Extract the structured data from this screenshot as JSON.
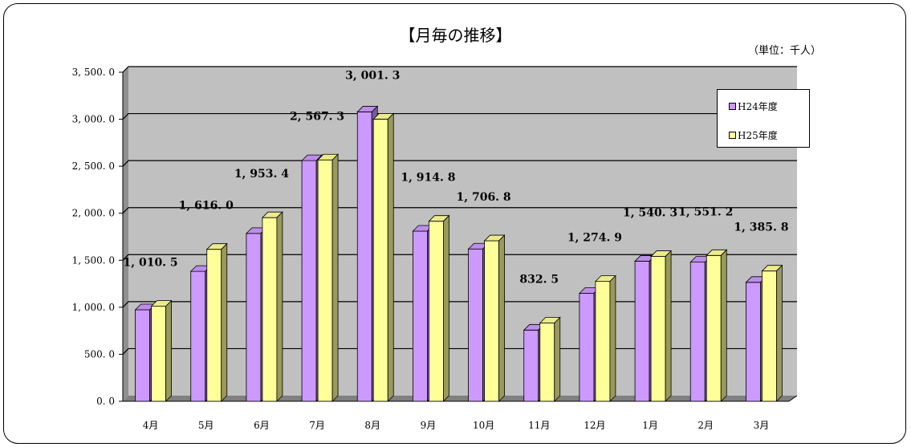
{
  "chart_data": {
    "type": "bar",
    "title": "【月毎の推移】",
    "unit_note": "（単位：千人）",
    "categories": [
      "4月",
      "5月",
      "6月",
      "7月",
      "8月",
      "9月",
      "10月",
      "11月",
      "12月",
      "1月",
      "2月",
      "3月"
    ],
    "series": [
      {
        "name": "H24年度",
        "color": "#cc99ff",
        "values": [
          973.0,
          1382.0,
          1785.0,
          2560.0,
          3078.0,
          1810.0,
          1620.0,
          757.0,
          1148.0,
          1490.0,
          1480.0,
          1265.0
        ]
      },
      {
        "name": "H25年度",
        "color": "#ffff99",
        "values": [
          1010.5,
          1616.0,
          1953.4,
          2567.3,
          3001.3,
          1914.8,
          1706.8,
          832.5,
          1274.9,
          1540.3,
          1551.2,
          1385.8
        ]
      }
    ],
    "data_labels": [
      "1, 010. 5",
      "1, 616. 0",
      "1, 953. 4",
      "2, 567. 3",
      "3, 001. 3",
      "1, 914. 8",
      "1, 706. 8",
      "832. 5",
      "1, 274. 9",
      "1, 540. 3",
      "1, 551. 2",
      "1, 385. 8"
    ],
    "y_ticks": [
      "0. 0",
      "500. 0",
      "1, 000. 0",
      "1, 500. 0",
      "2, 000. 0",
      "2, 500. 0",
      "3, 000. 0",
      "3, 500. 0"
    ],
    "ylim": [
      0,
      3500
    ],
    "grid": true,
    "legend_position": "top-right",
    "wall_color": "#c0c0c0"
  }
}
